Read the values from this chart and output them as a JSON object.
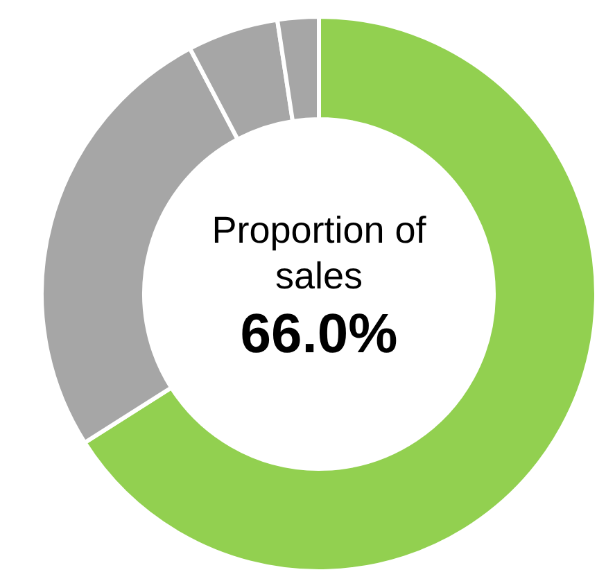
{
  "chart_data": {
    "type": "donut",
    "title": "Proportion of sales",
    "annotations": [
      "66.0%"
    ],
    "categories": [
      null,
      null,
      null,
      null
    ],
    "values": [
      66.0,
      26.3,
      5.3,
      2.4
    ],
    "colors": [
      "#92d050",
      "#a6a6a6",
      "#a6a6a6",
      "#a6a6a6"
    ]
  }
}
